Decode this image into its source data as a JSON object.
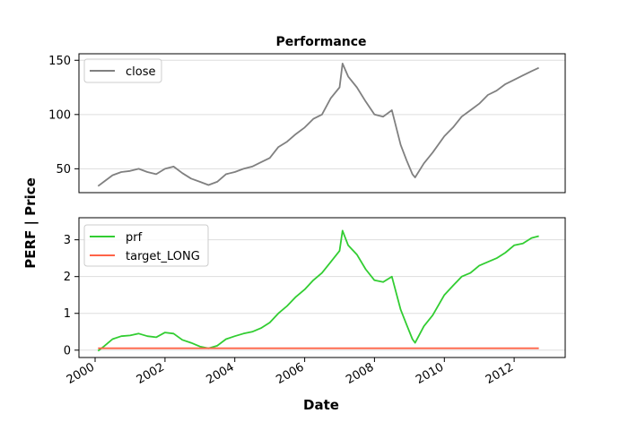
{
  "chart_data": {
    "title": "Performance",
    "xlabel": "Date",
    "ylabel": "PERF | Price",
    "x_range": [
      "2000-01-01",
      "2012-12-31"
    ],
    "x_ticks": [
      "2000",
      "2002",
      "2004",
      "2006",
      "2008",
      "2010",
      "2012"
    ],
    "panels": [
      {
        "type": "line",
        "ylim": [
          28,
          156
        ],
        "y_ticks": [
          50,
          100,
          150
        ],
        "grid": "horizontal",
        "legend_position": "top-left",
        "series": [
          {
            "name": "close",
            "color": "#808080",
            "x": [
              "2000-02-01",
              "2000-04-01",
              "2000-07-01",
              "2000-10-01",
              "2001-01-01",
              "2001-04-01",
              "2001-07-01",
              "2001-10-01",
              "2002-01-01",
              "2002-04-01",
              "2002-07-01",
              "2002-10-01",
              "2003-01-01",
              "2003-04-01",
              "2003-07-01",
              "2003-10-01",
              "2004-01-01",
              "2004-04-01",
              "2004-07-01",
              "2004-10-01",
              "2005-01-01",
              "2005-04-01",
              "2005-07-01",
              "2005-10-01",
              "2006-01-01",
              "2006-04-01",
              "2006-07-01",
              "2006-10-01",
              "2007-01-01",
              "2007-02-01",
              "2007-04-01",
              "2007-07-01",
              "2007-10-01",
              "2008-01-01",
              "2008-04-01",
              "2008-07-01",
              "2008-10-01",
              "2008-12-01",
              "2009-02-01",
              "2009-03-01",
              "2009-06-01",
              "2009-09-01",
              "2010-01-01",
              "2010-04-01",
              "2010-07-01",
              "2010-10-01",
              "2011-01-01",
              "2011-04-01",
              "2011-07-01",
              "2011-10-01",
              "2012-01-01",
              "2012-04-01",
              "2012-07-01",
              "2012-09-15"
            ],
            "values": [
              34,
              38,
              44,
              47,
              48,
              50,
              47,
              45,
              50,
              52,
              46,
              41,
              38,
              35,
              38,
              45,
              47,
              50,
              52,
              56,
              60,
              70,
              75,
              82,
              88,
              96,
              100,
              115,
              125,
              147,
              135,
              125,
              112,
              100,
              98,
              104,
              72,
              58,
              45,
              42,
              55,
              65,
              80,
              88,
              98,
              104,
              110,
              118,
              122,
              128,
              132,
              136,
              140,
              143
            ]
          }
        ]
      },
      {
        "type": "line",
        "ylim": [
          -0.2,
          3.6
        ],
        "y_ticks": [
          0,
          1,
          2,
          3
        ],
        "grid": "horizontal",
        "legend_position": "top-left",
        "series": [
          {
            "name": "prf",
            "color": "#32cd32",
            "x": [
              "2000-02-01",
              "2000-04-01",
              "2000-07-01",
              "2000-10-01",
              "2001-01-01",
              "2001-04-01",
              "2001-07-01",
              "2001-10-01",
              "2002-01-01",
              "2002-04-01",
              "2002-07-01",
              "2002-10-01",
              "2003-01-01",
              "2003-04-01",
              "2003-07-01",
              "2003-10-01",
              "2004-01-01",
              "2004-04-01",
              "2004-07-01",
              "2004-10-01",
              "2005-01-01",
              "2005-04-01",
              "2005-07-01",
              "2005-10-01",
              "2006-01-01",
              "2006-04-01",
              "2006-07-01",
              "2006-10-01",
              "2007-01-01",
              "2007-02-01",
              "2007-04-01",
              "2007-07-01",
              "2007-10-01",
              "2008-01-01",
              "2008-04-01",
              "2008-07-01",
              "2008-10-01",
              "2008-12-01",
              "2009-02-01",
              "2009-03-01",
              "2009-06-01",
              "2009-09-01",
              "2010-01-01",
              "2010-04-01",
              "2010-07-01",
              "2010-10-01",
              "2011-01-01",
              "2011-04-01",
              "2011-07-01",
              "2011-10-01",
              "2012-01-01",
              "2012-04-01",
              "2012-07-01",
              "2012-09-15"
            ],
            "values": [
              -0.02,
              0.1,
              0.3,
              0.38,
              0.4,
              0.45,
              0.38,
              0.35,
              0.48,
              0.45,
              0.28,
              0.2,
              0.1,
              0.05,
              0.12,
              0.3,
              0.38,
              0.45,
              0.5,
              0.6,
              0.75,
              1.0,
              1.2,
              1.45,
              1.65,
              1.9,
              2.1,
              2.4,
              2.7,
              3.25,
              2.85,
              2.6,
              2.2,
              1.9,
              1.85,
              2.0,
              1.1,
              0.7,
              0.3,
              0.2,
              0.65,
              0.95,
              1.5,
              1.75,
              2.0,
              2.1,
              2.3,
              2.4,
              2.5,
              2.65,
              2.85,
              2.9,
              3.05,
              3.1
            ]
          },
          {
            "name": "target_LONG",
            "color": "#ff6347",
            "x": [
              "2000-02-01",
              "2012-09-15"
            ],
            "values": [
              0.05,
              0.05
            ]
          }
        ]
      }
    ]
  }
}
